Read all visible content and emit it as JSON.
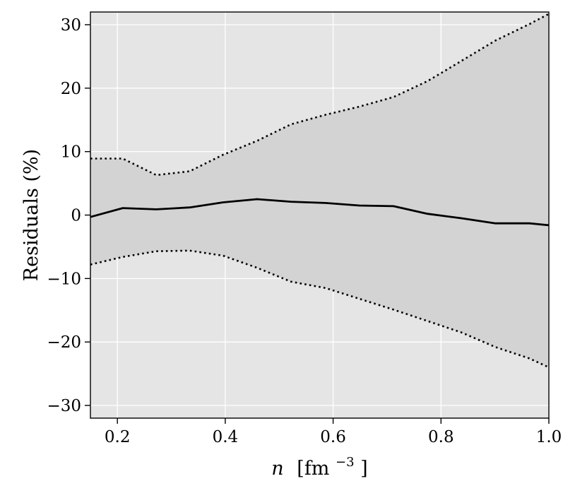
{
  "chart_data": {
    "type": "line",
    "title": "",
    "xlabel": {
      "var": "n",
      "unit_open": "[fm",
      "unit_exp": "−3",
      "unit_close": "]"
    },
    "ylabel": "Residuals (%)",
    "xlim": [
      0.15,
      1.0
    ],
    "ylim": [
      -32,
      32
    ],
    "x_ticks": [
      0.2,
      0.4,
      0.6,
      0.8,
      1.0
    ],
    "x_tick_labels": [
      "0.2",
      "0.4",
      "0.6",
      "0.8",
      "1.0"
    ],
    "y_ticks": [
      -30,
      -20,
      -10,
      0,
      10,
      20,
      30
    ],
    "y_tick_labels": [
      "−30",
      "−20",
      "−10",
      "0",
      "10",
      "20",
      "30"
    ],
    "grid": true,
    "colors": {
      "plot_background": "#e5e5e5",
      "band_fill": "#d3d3d3",
      "grid": "#ffffff",
      "line": "#000000"
    },
    "x": [
      0.15,
      0.21,
      0.272,
      0.334,
      0.396,
      0.459,
      0.522,
      0.586,
      0.649,
      0.712,
      0.775,
      0.838,
      0.901,
      0.964,
      1.0
    ],
    "series": [
      {
        "role": "central",
        "style": "solid",
        "values": [
          -0.3,
          1.1,
          0.9,
          1.2,
          2.0,
          2.5,
          2.1,
          1.9,
          1.5,
          1.4,
          0.2,
          -0.5,
          -1.3,
          -1.3,
          -1.6
        ]
      },
      {
        "role": "upper_bound",
        "style": "dotted",
        "values": [
          8.9,
          8.9,
          6.3,
          6.9,
          9.5,
          11.7,
          14.3,
          15.8,
          17.1,
          18.6,
          21.1,
          24.3,
          27.5,
          30.1,
          31.7
        ]
      },
      {
        "role": "lower_bound",
        "style": "dotted",
        "values": [
          -7.8,
          -6.6,
          -5.7,
          -5.6,
          -6.4,
          -8.3,
          -10.5,
          -11.5,
          -13.2,
          -14.9,
          -16.7,
          -18.5,
          -20.8,
          -22.6,
          -24.0
        ]
      }
    ]
  }
}
